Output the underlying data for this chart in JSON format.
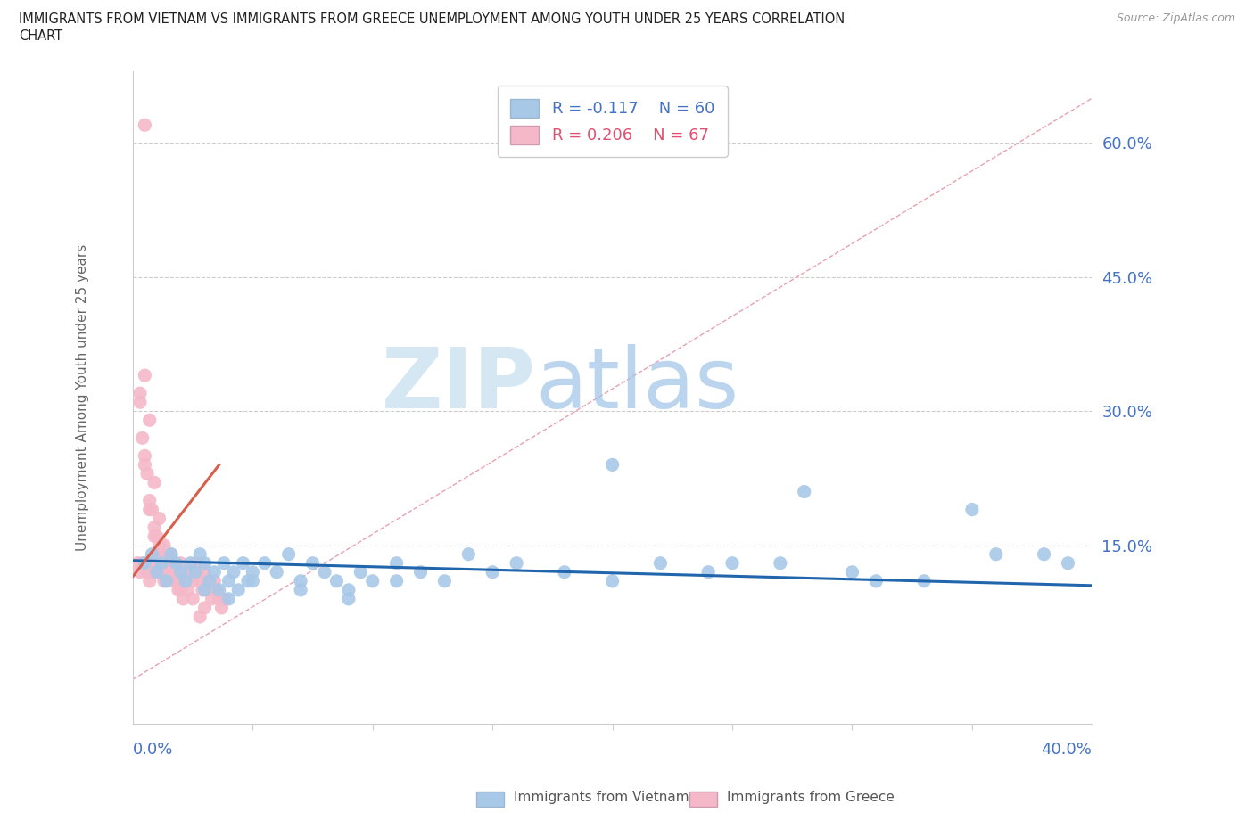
{
  "title_line1": "IMMIGRANTS FROM VIETNAM VS IMMIGRANTS FROM GREECE UNEMPLOYMENT AMONG YOUTH UNDER 25 YEARS CORRELATION",
  "title_line2": "CHART",
  "source": "Source: ZipAtlas.com",
  "ylabel": "Unemployment Among Youth under 25 years",
  "yticks": [
    0.0,
    0.15,
    0.3,
    0.45,
    0.6
  ],
  "ytick_labels": [
    "",
    "15.0%",
    "30.0%",
    "45.0%",
    "60.0%"
  ],
  "xlim": [
    0.0,
    0.4
  ],
  "ylim": [
    -0.05,
    0.68
  ],
  "color_vietnam": "#a8c8e8",
  "color_greece": "#f4b8c8",
  "trendline_vietnam_color": "#2166ac",
  "trendline_greece_color": "#d6604d",
  "diag_line_color": "#f4b8c8",
  "watermark_ZIP": "ZIP",
  "watermark_atlas": "atlas",
  "watermark_color_ZIP": "#c8dff0",
  "watermark_color_atlas": "#a8c8e8",
  "background_color": "#ffffff",
  "vietnam_x": [
    0.005,
    0.008,
    0.01,
    0.012,
    0.014,
    0.016,
    0.018,
    0.02,
    0.022,
    0.024,
    0.026,
    0.028,
    0.03,
    0.032,
    0.034,
    0.036,
    0.038,
    0.04,
    0.042,
    0.044,
    0.046,
    0.048,
    0.05,
    0.055,
    0.06,
    0.065,
    0.07,
    0.075,
    0.08,
    0.085,
    0.09,
    0.095,
    0.1,
    0.11,
    0.12,
    0.13,
    0.14,
    0.16,
    0.18,
    0.2,
    0.22,
    0.24,
    0.27,
    0.3,
    0.33,
    0.36,
    0.39,
    0.03,
    0.04,
    0.05,
    0.07,
    0.09,
    0.11,
    0.15,
    0.2,
    0.25,
    0.28,
    0.31,
    0.35,
    0.38
  ],
  "vietnam_y": [
    0.13,
    0.14,
    0.12,
    0.13,
    0.11,
    0.14,
    0.13,
    0.12,
    0.11,
    0.13,
    0.12,
    0.14,
    0.13,
    0.11,
    0.12,
    0.1,
    0.13,
    0.11,
    0.12,
    0.1,
    0.13,
    0.11,
    0.12,
    0.13,
    0.12,
    0.14,
    0.11,
    0.13,
    0.12,
    0.11,
    0.1,
    0.12,
    0.11,
    0.13,
    0.12,
    0.11,
    0.14,
    0.13,
    0.12,
    0.24,
    0.13,
    0.12,
    0.13,
    0.12,
    0.11,
    0.14,
    0.13,
    0.1,
    0.09,
    0.11,
    0.1,
    0.09,
    0.11,
    0.12,
    0.11,
    0.13,
    0.21,
    0.11,
    0.19,
    0.14
  ],
  "greece_x": [
    0.002,
    0.003,
    0.004,
    0.005,
    0.006,
    0.007,
    0.008,
    0.009,
    0.01,
    0.011,
    0.012,
    0.013,
    0.014,
    0.015,
    0.016,
    0.017,
    0.018,
    0.019,
    0.02,
    0.021,
    0.022,
    0.023,
    0.024,
    0.025,
    0.026,
    0.027,
    0.028,
    0.029,
    0.03,
    0.031,
    0.032,
    0.033,
    0.034,
    0.035,
    0.036,
    0.037,
    0.038,
    0.005,
    0.007,
    0.009,
    0.011,
    0.013,
    0.015,
    0.003,
    0.005,
    0.007,
    0.009,
    0.011,
    0.003,
    0.005,
    0.007,
    0.009,
    0.011,
    0.013,
    0.015,
    0.017,
    0.019,
    0.021,
    0.025,
    0.03,
    0.004,
    0.006,
    0.008,
    0.01,
    0.014,
    0.02,
    0.028
  ],
  "greece_y": [
    0.13,
    0.12,
    0.13,
    0.62,
    0.12,
    0.11,
    0.13,
    0.12,
    0.14,
    0.13,
    0.12,
    0.11,
    0.13,
    0.12,
    0.14,
    0.13,
    0.12,
    0.11,
    0.13,
    0.12,
    0.11,
    0.1,
    0.12,
    0.11,
    0.13,
    0.12,
    0.11,
    0.1,
    0.12,
    0.11,
    0.1,
    0.09,
    0.11,
    0.1,
    0.09,
    0.08,
    0.09,
    0.34,
    0.29,
    0.22,
    0.18,
    0.15,
    0.13,
    0.32,
    0.25,
    0.2,
    0.17,
    0.15,
    0.31,
    0.24,
    0.19,
    0.16,
    0.14,
    0.13,
    0.12,
    0.11,
    0.1,
    0.09,
    0.09,
    0.08,
    0.27,
    0.23,
    0.19,
    0.16,
    0.13,
    0.1,
    0.07
  ]
}
